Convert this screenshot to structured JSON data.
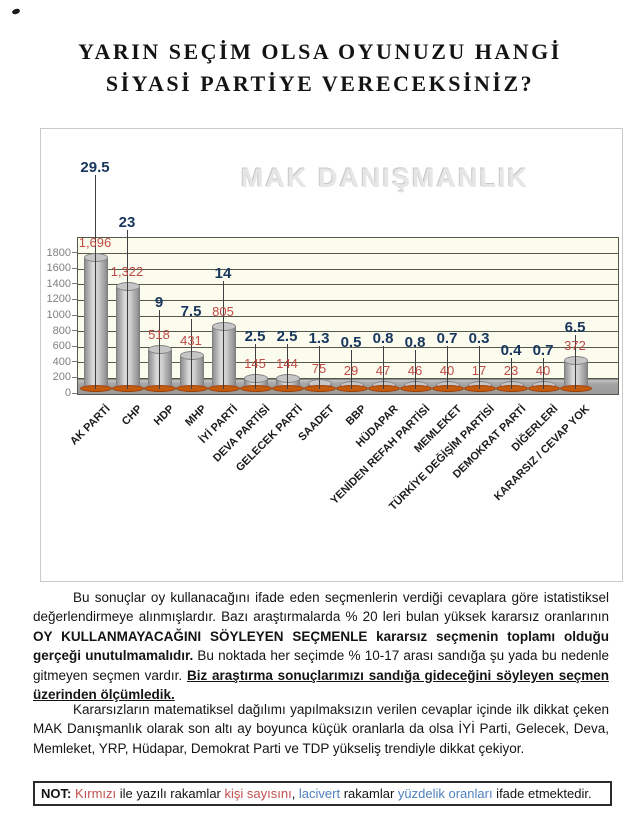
{
  "page": {
    "title_line1": "YARIN SEÇİM OLSA OYUNUZU HANGİ",
    "title_line2": "SİYASİ PARTİYE VERECEKSİNİZ?"
  },
  "chart_data": {
    "type": "bar",
    "title": "YARIN SEÇİM OLSA OYUNUZU HANGİ SİYASİ PARTİYE VERECEKSİNİZ?",
    "watermark": "MAK DANIŞMANLIK",
    "categories": [
      "AK PARTİ",
      "CHP",
      "HDP",
      "MHP",
      "İYİ PARTİ",
      "DEVA PARTİSİ",
      "GELECEK PARTİ",
      "SAADET",
      "BBP",
      "HÜDAPAR",
      "YENİDEN REFAH PARTİSİ",
      "MEMLEKET",
      "TÜRKİYE DEĞİŞİM PARTİSİ",
      "DEMOKRAT PARTİ",
      "DİĞERLERİ",
      "KARARSIZ / CEVAP YOK"
    ],
    "series": [
      {
        "name": "kişi sayısı",
        "values": [
          1696,
          1322,
          518,
          431,
          805,
          145,
          144,
          75,
          29,
          47,
          46,
          40,
          17,
          23,
          40,
          372
        ],
        "labels": [
          "1,696",
          "1,322",
          "518",
          "431",
          "805",
          "145",
          "144",
          "75",
          "29",
          "47",
          "46",
          "40",
          "17",
          "23",
          "40",
          "372"
        ],
        "color": "#bf4b45"
      },
      {
        "name": "yüzdelik oran",
        "values": [
          29.5,
          23,
          9,
          7.5,
          14,
          2.5,
          2.5,
          1.3,
          0.5,
          0.8,
          0.8,
          0.7,
          0.3,
          0.4,
          0.7,
          6.5
        ],
        "labels": [
          "29.5",
          "23",
          "9",
          "7.5",
          "14",
          "2.5",
          "2.5",
          "1.3",
          "0.5",
          "0.8",
          "0.8",
          "0.7",
          "0.3",
          "0.4",
          "0.7",
          "6.5"
        ],
        "color": "#17365d"
      }
    ],
    "y_ticks": [
      0,
      200,
      400,
      600,
      800,
      1000,
      1200,
      1400,
      1600,
      1800
    ],
    "ylim": [
      0,
      2000
    ],
    "grid": true,
    "legend_position": "none",
    "xlabel": "",
    "ylabel": ""
  },
  "paragraphs": {
    "p1": {
      "segments": [
        {
          "t": "Bu sonuçlar oy kullanacağını ifade eden seçmenlerin verdiği cevaplara göre istatistiksel değerlendirmeye alınmışlardır. Bazı araştırmalarda % 20 leri bulan yüksek kararsız oranlarının ",
          "s": "n"
        },
        {
          "t": "OY KULLANMAYACAĞINI SÖYLEYEN SEÇMENLE kararsız seçmenin toplamı olduğu gerçeği unutulmamalıdır.",
          "s": "b"
        },
        {
          "t": " Bu noktada her seçimde % 10-17 arası sandığa şu yada bu nedenle gitmeyen seçmen vardır. ",
          "s": "n"
        },
        {
          "t": "Biz araştırma sonuçlarımızı sandığa gideceğini söyleyen seçmen üzerinden ölçümledik.",
          "s": "bu"
        }
      ]
    },
    "p2": {
      "segments": [
        {
          "t": "Kararsızların matematiksel dağılımı yapılmaksızın verilen cevaplar içinde ilk dikkat çeken MAK Danışmanlık olarak son altı ay boyunca küçük oranlarla da olsa İYİ Parti, Gelecek, Deva, Memleket, YRP, Hüdapar, Demokrat Parti ve TDP yükseliş trendiyle dikkat çekiyor.",
          "s": "n"
        }
      ]
    }
  },
  "note": {
    "segments": [
      {
        "t": "NOT:",
        "s": "b",
        "c": "#141414"
      },
      {
        "t": " Kırmızı",
        "s": "n",
        "c": "#c0504d"
      },
      {
        "t": " ile yazılı rakamlar ",
        "s": "n",
        "c": "#141414"
      },
      {
        "t": "kişi sayısını",
        "s": "n",
        "c": "#c0504d"
      },
      {
        "t": ", ",
        "s": "n",
        "c": "#141414"
      },
      {
        "t": "lacivert",
        "s": "n",
        "c": "#4f81bd"
      },
      {
        "t": " rakamlar ",
        "s": "n",
        "c": "#141414"
      },
      {
        "t": "yüzdelik oranları",
        "s": "n",
        "c": "#4f81bd"
      },
      {
        "t": " ifade etmektedir.",
        "s": "n",
        "c": "#141414"
      }
    ]
  },
  "colors": {
    "count_red": "#bf4b45",
    "percent_navy": "#17365d",
    "pedestal_orange": "#c55a11",
    "plot_bg": "#fbfbee",
    "gridline": "#55584a"
  }
}
